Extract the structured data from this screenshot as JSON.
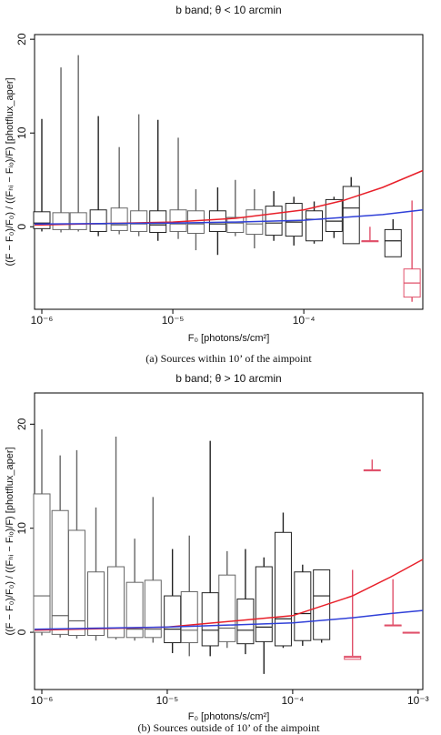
{
  "chart_data": [
    {
      "type": "box",
      "title": "b band;  θ < 10 arcmin",
      "xlabel": "F₀ [photons/s/cm²]",
      "ylabel": "((F − F₀)/F₀) / ((Fₕᵢ − Fₗₒ)/F)  [photflux_aper]",
      "caption": "(a)  Sources within 10’ of the aimpoint",
      "xlog": true,
      "xlim": [
        8.8e-07,
        0.00081
      ],
      "ylim": [
        -8.8,
        20.5
      ],
      "xticks": [
        {
          "value": 1e-06,
          "label": "10⁻⁶"
        },
        {
          "value": 1e-05,
          "label": "10⁻⁵"
        },
        {
          "value": 0.0001,
          "label": "10⁻⁴"
        }
      ],
      "yticks": [
        0,
        10,
        20
      ],
      "boxes": {
        "x": [
          1e-06,
          1.4e-06,
          1.9e-06,
          2.7e-06,
          3.9e-06,
          5.5e-06,
          7.7e-06,
          1.1e-05,
          1.5e-05,
          2.2e-05,
          3e-05,
          4.2e-05,
          5.9e-05,
          8.4e-05,
          0.00012,
          0.00017,
          0.00023,
          0.00032,
          0.00048,
          0.00067
        ],
        "whisker_low": [
          -0.5,
          -0.6,
          -0.5,
          -1,
          -0.8,
          -1,
          -1.5,
          -1.3,
          -2.5,
          -3,
          -1,
          -2.3,
          -1.5,
          -2,
          -1.8,
          -1.2,
          -1.8,
          -1.5,
          -3.2,
          -8
        ],
        "q1": [
          -0.2,
          -0.3,
          -0.3,
          -0.5,
          -0.4,
          -0.5,
          -0.6,
          -0.5,
          -0.7,
          -0.5,
          -0.6,
          -0.8,
          -0.9,
          -1,
          -1.5,
          -0.5,
          -1.8,
          -1.5,
          -3.2,
          -7.5
        ],
        "median": [
          0.4,
          0.3,
          0.3,
          0.3,
          0.2,
          0.3,
          0.2,
          0.3,
          0.3,
          0.3,
          0.4,
          0.3,
          0.4,
          0.5,
          0.8,
          0.6,
          2,
          -1.5,
          -1.5,
          -6
        ],
        "q3": [
          1.6,
          1.5,
          1.5,
          1.8,
          2,
          1.7,
          1.7,
          1.8,
          1.7,
          1.7,
          1,
          1.8,
          2.2,
          2.5,
          1.7,
          2.9,
          4.3,
          -1.5,
          -0.3,
          -4.5
        ],
        "whisker_high": [
          11.5,
          17,
          18.3,
          11.8,
          8.5,
          12,
          11.4,
          9.5,
          4,
          4.2,
          5,
          4,
          3.8,
          3.2,
          2.7,
          3.2,
          5.3,
          0,
          0.8,
          2.8
        ],
        "colors": [
          "#222",
          "#666",
          "#666",
          "#222",
          "#666",
          "#666",
          "#222",
          "#666",
          "#666",
          "#222",
          "#666",
          "#666",
          "#222",
          "#222",
          "#222",
          "#222",
          "#222",
          "#e0506a",
          "#222",
          "#e0506a"
        ]
      },
      "lines": [
        {
          "color": "#e8202a",
          "x": [
            8.8e-07,
            1e-06,
            1e-05,
            3e-05,
            0.0001,
            0.0002,
            0.0004,
            0.00081
          ],
          "values": [
            0.2,
            0.2,
            0.5,
            0.9,
            1.8,
            2.8,
            4.2,
            6
          ]
        },
        {
          "color": "#3040d8",
          "x": [
            8.8e-07,
            1e-06,
            1e-05,
            3e-05,
            0.0001,
            0.0002,
            0.0004,
            0.00081
          ],
          "values": [
            0.3,
            0.3,
            0.4,
            0.5,
            0.7,
            1,
            1.3,
            1.8
          ]
        }
      ]
    },
    {
      "type": "box",
      "title": "b band;  θ > 10 arcmin",
      "xlabel": "F₀ [photons/s/cm²]",
      "ylabel": "((F − F₀)/F₀) / ((Fₕᵢ − Fₗₒ)/F)  [photflux_aper]",
      "caption": "(b)  Sources outside of 10’ of the aimpoint",
      "xlog": true,
      "xlim": [
        8.75e-07,
        0.00109
      ],
      "ylim": [
        -5.5,
        23
      ],
      "xticks": [
        {
          "value": 1e-06,
          "label": "10⁻⁶"
        },
        {
          "value": 1e-05,
          "label": "10⁻⁵"
        },
        {
          "value": 0.0001,
          "label": "10⁻⁴"
        },
        {
          "value": 0.001,
          "label": "10⁻³"
        }
      ],
      "yticks": [
        0,
        10,
        20
      ],
      "boxes": {
        "x": [
          1e-06,
          1.4e-06,
          1.9e-06,
          2.7e-06,
          3.9e-06,
          5.5e-06,
          7.7e-06,
          1.1e-05,
          1.5e-05,
          2.2e-05,
          3e-05,
          4.2e-05,
          5.9e-05,
          8.4e-05,
          0.00012,
          0.00017,
          0.0003,
          0.00043,
          0.00063,
          0.00088
        ],
        "whisker_low": [
          -0.3,
          -0.5,
          -0.6,
          -0.8,
          -0.7,
          -0.8,
          -1,
          -2,
          -2.3,
          -2.3,
          -1.5,
          -2.1,
          -4,
          -1.5,
          -1.3,
          -1,
          -2.6,
          15.6,
          0.7,
          0
        ],
        "q1": [
          0,
          -0.2,
          -0.3,
          -0.3,
          -0.5,
          -0.5,
          -0.5,
          -1,
          -1,
          -1.3,
          -0.9,
          -1.1,
          -0.9,
          -1.3,
          -0.8,
          -0.7,
          -2.6,
          15.6,
          0.7,
          0
        ],
        "median": [
          3.5,
          1.6,
          1.1,
          0.4,
          0.4,
          0.3,
          0.3,
          0.3,
          0.2,
          0.2,
          0.4,
          0.2,
          0.5,
          1.3,
          1.8,
          3.5,
          -2.4,
          15.6,
          0.7,
          0
        ],
        "q3": [
          13.3,
          11.7,
          9.8,
          5.8,
          6.3,
          4.8,
          5,
          3.5,
          3.9,
          3.8,
          5.5,
          3.2,
          6.3,
          9.6,
          5.8,
          6,
          -2.3,
          15.6,
          0.7,
          0
        ],
        "whisker_high": [
          19.5,
          17,
          17.5,
          12,
          18.8,
          9,
          13,
          8,
          9.3,
          18.4,
          7.8,
          8,
          7.2,
          11.5,
          6.5,
          6,
          6,
          16.6,
          5.1,
          0
        ],
        "colors": [
          "#666",
          "#666",
          "#666",
          "#666",
          "#666",
          "#666",
          "#666",
          "#222",
          "#666",
          "#222",
          "#666",
          "#222",
          "#222",
          "#222",
          "#222",
          "#222",
          "#e0506a",
          "#e0506a",
          "#e0506a",
          "#e0506a"
        ]
      },
      "lines": [
        {
          "color": "#e8202a",
          "x": [
            8.75e-07,
            1e-05,
            0.0001,
            0.0003,
            0.0006,
            0.00109
          ],
          "values": [
            0.2,
            0.5,
            1.6,
            3.5,
            5.3,
            7
          ]
        },
        {
          "color": "#3040d8",
          "x": [
            8.75e-07,
            1e-05,
            0.0001,
            0.0003,
            0.0006,
            0.00109
          ],
          "values": [
            0.3,
            0.5,
            0.9,
            1.4,
            1.8,
            2.1
          ]
        }
      ]
    }
  ]
}
